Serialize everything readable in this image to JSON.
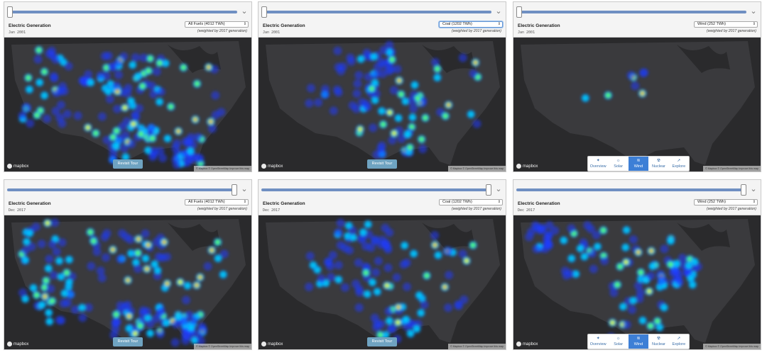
{
  "colors": {
    "map_background": "#2a2a2c",
    "slider_track": "#6f8fc2",
    "revisit_button": "#6fa3c1",
    "tour_active": "#3d7fd6",
    "heat_scale": [
      "#1e3cff",
      "#00d4ff",
      "#5dff5d",
      "#ffe600",
      "#ff1a00"
    ]
  },
  "panels": [
    {
      "title": "Electric Generation",
      "date": "Jan 2001",
      "fuel": "All Fuels (4012 TWh)",
      "weight_note": "(weighted by 2017 generation)",
      "slider_position": 0,
      "mapbox_label": "mapbox",
      "attribution": "© Mapbox © OpenStreetMap Improve this map",
      "revisit_label": "Revisit Tour"
    },
    {
      "title": "Electric Generation",
      "date": "Jan 2001",
      "fuel": "Coal (1202 TWh)",
      "weight_note": "(weighted by 2017 generation)",
      "slider_position": 0,
      "mapbox_label": "mapbox",
      "attribution": "© Mapbox © OpenStreetMap Improve this map",
      "revisit_label": "Revisit Tour"
    },
    {
      "title": "Electric Generation",
      "date": "Jan 2001",
      "fuel": "Wind (252 TWh)",
      "weight_note": "(weighted by 2017 generation)",
      "slider_position": 0,
      "mapbox_label": "mapbox",
      "attribution": "© Mapbox © OpenStreetMap Improve this map",
      "tour": [
        {
          "label": "Overview",
          "icon": "star-icon"
        },
        {
          "label": "Solar",
          "icon": "sun-icon"
        },
        {
          "label": "Wind",
          "icon": "wind-icon"
        },
        {
          "label": "Nuclear",
          "icon": "nuclear-icon"
        },
        {
          "label": "Explore",
          "icon": "pointer-icon"
        }
      ],
      "tour_active": "Wind"
    },
    {
      "title": "Electric Generation",
      "date": "Dec 2017",
      "fuel": "All Fuels (4012 TWh)",
      "weight_note": "(weighted by 2017 generation)",
      "slider_position": 1,
      "mapbox_label": "mapbox",
      "attribution": "© Mapbox © OpenStreetMap Improve this map",
      "revisit_label": "Revisit Tour"
    },
    {
      "title": "Electric Generation",
      "date": "Dec 2017",
      "fuel": "Coal (1202 TWh)",
      "weight_note": "(weighted by 2017 generation)",
      "slider_position": 1,
      "mapbox_label": "mapbox",
      "attribution": "© Mapbox © OpenStreetMap Improve this map",
      "revisit_label": "Revisit Tour"
    },
    {
      "title": "Electric Generation",
      "date": "Dec 2017",
      "fuel": "Wind (252 TWh)",
      "weight_note": "(weighted by 2017 generation)",
      "slider_position": 1,
      "mapbox_label": "mapbox",
      "attribution": "© Mapbox © OpenStreetMap Improve this map",
      "tour": [
        {
          "label": "Overview",
          "icon": "star-icon"
        },
        {
          "label": "Solar",
          "icon": "sun-icon"
        },
        {
          "label": "Wind",
          "icon": "wind-icon"
        },
        {
          "label": "Nuclear",
          "icon": "nuclear-icon"
        },
        {
          "label": "Explore",
          "icon": "pointer-icon"
        }
      ],
      "tour_active": "Wind"
    }
  ]
}
